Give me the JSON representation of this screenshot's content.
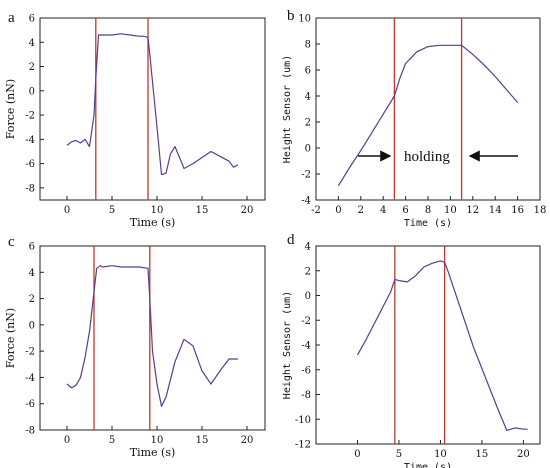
{
  "colors": {
    "curve": "#5a3c8f",
    "marker": "#c0392b",
    "axis": "#222222",
    "arrow": "#111111"
  },
  "chart_data": [
    {
      "panel": "a",
      "type": "line",
      "xlabel": "Time (s)",
      "ylabel": "Force (nN)",
      "xlim": [
        -3,
        22
      ],
      "ylim": [
        -9,
        6
      ],
      "xticks": [
        0,
        5,
        10,
        15,
        20
      ],
      "yticks": [
        -8,
        -6,
        -4,
        -2,
        0,
        2,
        4,
        6
      ],
      "vlines": [
        3.2,
        9.0
      ],
      "grid": false,
      "series": [
        {
          "x": [
            0,
            0.5,
            1,
            1.5,
            2,
            2.5,
            3,
            3.2,
            3.5,
            4,
            5,
            6,
            7,
            8,
            8.5,
            9,
            9.2,
            10,
            10.5,
            11,
            11.5,
            12,
            12.5,
            13,
            14,
            15,
            16,
            17,
            18,
            18.5,
            19
          ],
          "y": [
            -4.5,
            -4.2,
            -4.1,
            -4.3,
            -4.0,
            -4.6,
            -2,
            1,
            4.6,
            4.6,
            4.6,
            4.7,
            4.6,
            4.5,
            4.5,
            4.4,
            3,
            -3,
            -6.9,
            -6.8,
            -5.2,
            -4.6,
            -5.5,
            -6.4,
            -6.0,
            -5.5,
            -5.0,
            -5.4,
            -5.8,
            -6.3,
            -6.1
          ]
        }
      ]
    },
    {
      "panel": "b",
      "type": "line",
      "xlabel": "Time (s)",
      "ylabel": "Height Sensor (um)",
      "xlim": [
        -2,
        18
      ],
      "ylim": [
        -4,
        10
      ],
      "xticks": [
        -2,
        0,
        2,
        4,
        6,
        8,
        10,
        12,
        14,
        16,
        18
      ],
      "yticks": [
        -4,
        -2,
        0,
        2,
        4,
        6,
        8,
        10
      ],
      "vlines": [
        5.0,
        11.0
      ],
      "grid": false,
      "annotation": "holding",
      "series": [
        {
          "x": [
            0,
            1,
            2,
            3,
            4,
            5,
            5.5,
            6,
            7,
            8,
            9,
            10,
            11,
            12,
            13,
            14,
            15,
            16
          ],
          "y": [
            -2.9,
            -1.5,
            -0.2,
            1.2,
            2.6,
            4.0,
            5.4,
            6.5,
            7.4,
            7.8,
            7.9,
            7.9,
            7.9,
            7.2,
            6.4,
            5.5,
            4.5,
            3.5
          ]
        }
      ]
    },
    {
      "panel": "c",
      "type": "line",
      "xlabel": "Time (s)",
      "ylabel": "Force (nN)",
      "xlim": [
        -3,
        22
      ],
      "ylim": [
        -8,
        6
      ],
      "xticks": [
        0,
        5,
        10,
        15,
        20
      ],
      "yticks": [
        -8,
        -6,
        -4,
        -2,
        0,
        2,
        4,
        6
      ],
      "vlines": [
        3.0,
        9.2
      ],
      "grid": false,
      "series": [
        {
          "x": [
            0,
            0.5,
            1,
            1.5,
            2,
            2.5,
            3,
            3.3,
            3.7,
            4,
            5,
            6,
            7,
            8,
            9,
            9.2,
            9.5,
            10,
            10.5,
            11,
            12,
            13,
            14,
            15,
            16,
            17,
            18,
            19
          ],
          "y": [
            -4.5,
            -4.8,
            -4.6,
            -4.0,
            -2.5,
            -0.5,
            2.5,
            4.3,
            4.5,
            4.4,
            4.5,
            4.4,
            4.4,
            4.4,
            4.3,
            2.0,
            -2.0,
            -4.5,
            -6.2,
            -5.5,
            -2.8,
            -1.1,
            -1.6,
            -3.5,
            -4.5,
            -3.5,
            -2.6,
            -2.6
          ]
        }
      ]
    },
    {
      "panel": "d",
      "type": "line",
      "xlabel": "Time (s)",
      "ylabel": "Height Sensor (um)",
      "xlim": [
        -5,
        22
      ],
      "ylim": [
        -12,
        4
      ],
      "xticks": [
        0,
        5,
        10,
        15,
        20
      ],
      "yticks": [
        -12,
        -10,
        -8,
        -6,
        -4,
        -2,
        0,
        2,
        4
      ],
      "vlines": [
        4.5,
        10.5
      ],
      "grid": false,
      "series": [
        {
          "x": [
            0,
            1,
            2,
            3,
            4,
            4.5,
            5,
            6,
            7,
            8,
            9,
            10,
            10.5,
            11,
            12,
            13,
            14,
            15,
            16,
            17,
            18,
            19,
            20,
            20.5
          ],
          "y": [
            -4.8,
            -3.6,
            -2.3,
            -1.0,
            0.3,
            1.3,
            1.2,
            1.1,
            1.6,
            2.3,
            2.6,
            2.8,
            2.7,
            1.8,
            -0.2,
            -2.2,
            -4.2,
            -5.9,
            -7.6,
            -9.3,
            -10.9,
            -10.7,
            -10.8,
            -10.8
          ]
        }
      ]
    }
  ]
}
